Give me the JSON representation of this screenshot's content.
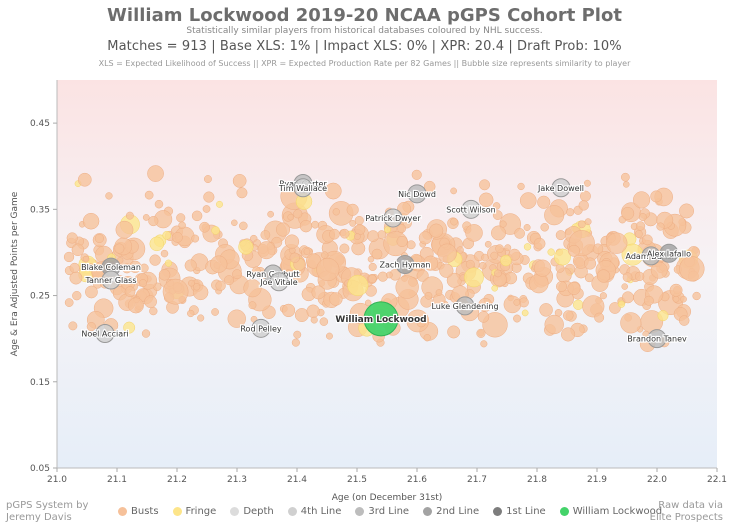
{
  "header": {
    "title": "William Lockwood 2019-20 NCAA pGPS Cohort Plot",
    "subtitle": "Statistically similar players from historical databases coloured by NHL success.",
    "stats": "Matches = 913  |  Base XLS: 1%  |  Impact XLS: 0%  |  XPR: 20.4  |  Draft Prob: 10%",
    "note": "XLS = Expected Likelihood of Success || XPR = Expected Production Rate per 82 Games || Bubble size represents similarity to player"
  },
  "footer": {
    "left_line1": "pGPS System by",
    "left_line2": "Jeremy Davis",
    "right_line1": "Raw data via",
    "right_line2": "Elite Prospects"
  },
  "legend": [
    {
      "label": "Busts",
      "color": "#f6c19a"
    },
    {
      "label": "Fringe",
      "color": "#fde58a"
    },
    {
      "label": "Depth",
      "color": "#dcdcdc"
    },
    {
      "label": "4th Line",
      "color": "#d0d0d0"
    },
    {
      "label": "3rd Line",
      "color": "#bdbdbd"
    },
    {
      "label": "2nd Line",
      "color": "#a3a3a3"
    },
    {
      "label": "1st Line",
      "color": "#7d7d7d"
    },
    {
      "label": "William Lockwood",
      "color": "#44d36a"
    }
  ],
  "chart_data": {
    "type": "scatter",
    "title": "William Lockwood 2019-20 NCAA pGPS Cohort Plot",
    "xlabel": "Age (on December 31st)",
    "ylabel": "Age & Era Adjusted Points per Game",
    "xlim": [
      21.0,
      22.1
    ],
    "ylim": [
      0.05,
      0.5
    ],
    "xticks": [
      "21.0",
      "21.1",
      "21.2",
      "21.3",
      "21.4",
      "21.5",
      "21.6",
      "21.7",
      "21.8",
      "21.9",
      "22.0",
      "22.1"
    ],
    "yticks": [
      "0.05",
      "0.15",
      "0.25",
      "0.35",
      "0.45"
    ],
    "named_points": [
      {
        "name": "William Lockwood",
        "x": 21.54,
        "y": 0.223,
        "category": "player"
      },
      {
        "name": "Blake Coleman",
        "x": 21.09,
        "y": 0.283,
        "category": "2nd Line"
      },
      {
        "name": "Tanner Glass",
        "x": 21.09,
        "y": 0.268,
        "category": "4th Line"
      },
      {
        "name": "Noel Acciari",
        "x": 21.08,
        "y": 0.206,
        "category": "4th Line"
      },
      {
        "name": "Ryan Garbutt",
        "x": 21.36,
        "y": 0.275,
        "category": "3rd Line"
      },
      {
        "name": "Joe Vitale",
        "x": 21.37,
        "y": 0.266,
        "category": "4th Line"
      },
      {
        "name": "Rod Pelley",
        "x": 21.34,
        "y": 0.212,
        "category": "4th Line"
      },
      {
        "name": "Ryan Carter",
        "x": 21.41,
        "y": 0.38,
        "category": "3rd Line"
      },
      {
        "name": "Tim Wallace",
        "x": 21.41,
        "y": 0.375,
        "category": "4th Line"
      },
      {
        "name": "Patrick Dwyer",
        "x": 21.56,
        "y": 0.34,
        "category": "4th Line"
      },
      {
        "name": "Nic Dowd",
        "x": 21.6,
        "y": 0.368,
        "category": "3rd Line"
      },
      {
        "name": "Zach Hyman",
        "x": 21.58,
        "y": 0.286,
        "category": "2nd Line"
      },
      {
        "name": "Scott Wilson",
        "x": 21.69,
        "y": 0.35,
        "category": "4th Line"
      },
      {
        "name": "Luke Glendening",
        "x": 21.68,
        "y": 0.238,
        "category": "3rd Line"
      },
      {
        "name": "Jake Dowell",
        "x": 21.84,
        "y": 0.375,
        "category": "4th Line"
      },
      {
        "name": "Adam Burish",
        "x": 21.99,
        "y": 0.296,
        "category": "3rd Line"
      },
      {
        "name": "Alex Iafallo",
        "x": 22.02,
        "y": 0.299,
        "category": "2nd Line"
      },
      {
        "name": "Brandon Tanev",
        "x": 22.0,
        "y": 0.2,
        "category": "3rd Line"
      }
    ]
  }
}
